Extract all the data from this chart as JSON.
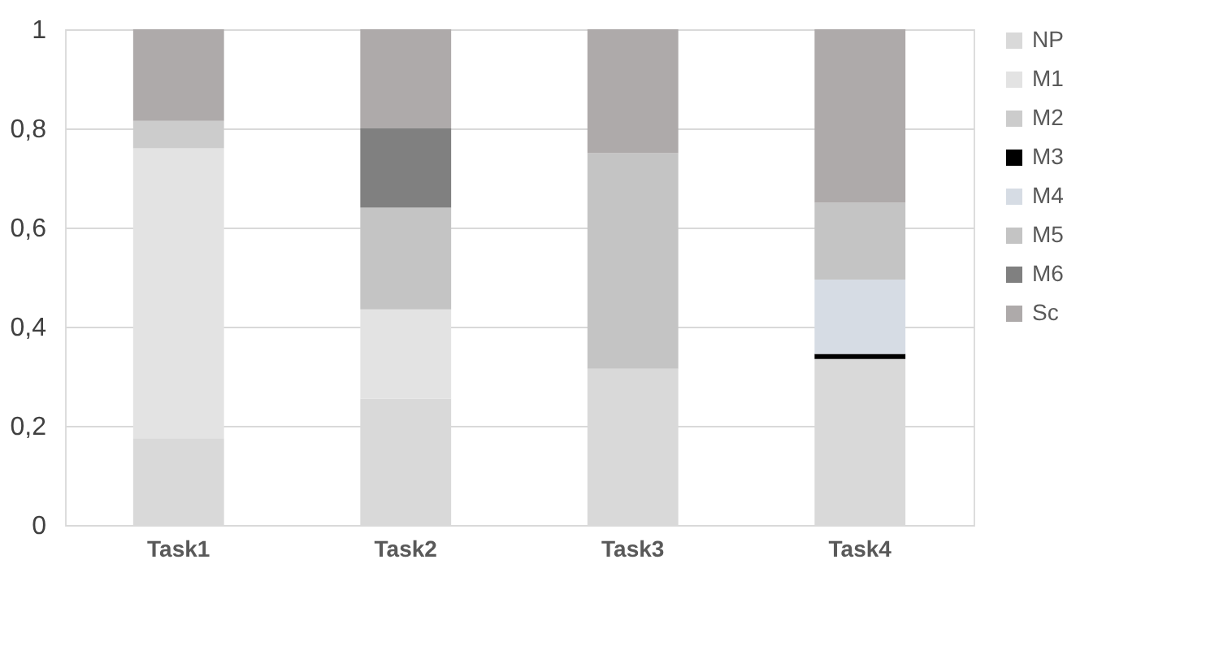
{
  "chart_data": {
    "type": "bar",
    "stacked": true,
    "categories": [
      "Task1",
      "Task2",
      "Task3",
      "Task4"
    ],
    "series": [
      {
        "name": "NP",
        "color": "#d9d9d9",
        "values": [
          0.175,
          0.255,
          0.315,
          0.335
        ]
      },
      {
        "name": "M1",
        "color": "#e3e3e3",
        "values": [
          0.585,
          0.18,
          null,
          null
        ]
      },
      {
        "name": "M2",
        "color": "#cccccc",
        "values": [
          0.055,
          null,
          null,
          null
        ]
      },
      {
        "name": "M3",
        "color": "#000000",
        "values": [
          null,
          null,
          null,
          0.01
        ]
      },
      {
        "name": "M4",
        "color": "#d6dce4",
        "values": [
          null,
          null,
          null,
          0.15
        ]
      },
      {
        "name": "M5",
        "color": "#c4c4c4",
        "values": [
          null,
          0.205,
          0.435,
          0.155
        ]
      },
      {
        "name": "M6",
        "color": "#808080",
        "values": [
          null,
          0.16,
          null,
          null
        ]
      },
      {
        "name": "Sc",
        "color": "#aeaaaa",
        "values": [
          0.185,
          0.2,
          0.25,
          0.35
        ]
      }
    ],
    "ylim": [
      0,
      1
    ],
    "yticks": [
      0,
      {
        "value": 0.2,
        "label": "0,2"
      },
      {
        "value": 0.4,
        "label": "0,4"
      },
      {
        "value": 0.6,
        "label": "0,6"
      },
      {
        "value": 0.8,
        "label": "0,8"
      },
      1
    ],
    "grid": "y",
    "legend": "right"
  }
}
